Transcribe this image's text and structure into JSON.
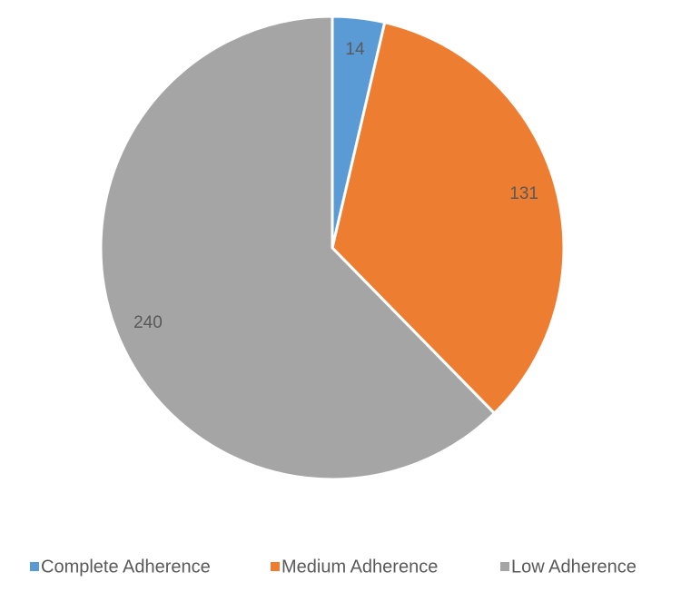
{
  "chart_data": {
    "type": "pie",
    "categories": [
      "Complete Adherence",
      "Medium Adherence",
      "Low Adherence"
    ],
    "values": [
      14,
      131,
      240
    ],
    "colors": [
      "#5b9bd5",
      "#ed7d31",
      "#a5a5a5"
    ],
    "legend": "bottom"
  }
}
